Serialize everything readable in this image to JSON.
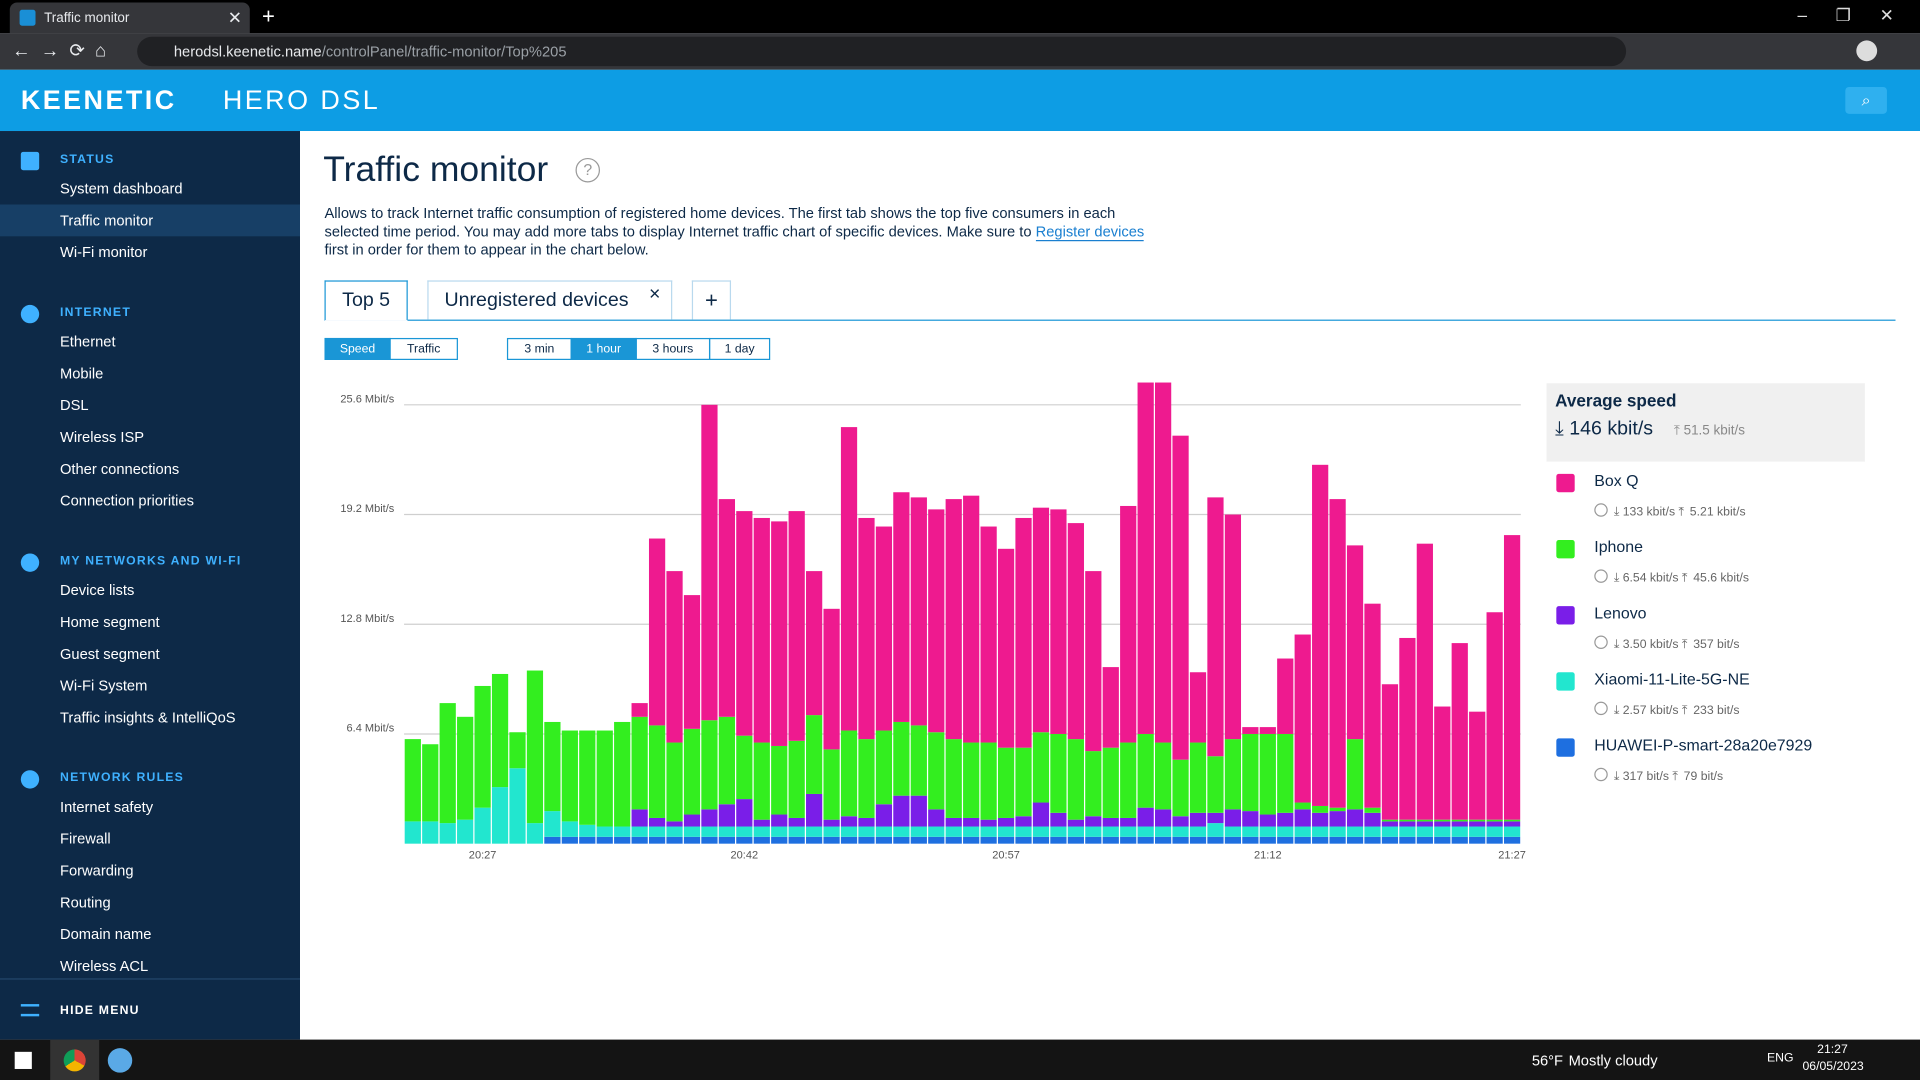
{
  "browser": {
    "tab_title": "Traffic monitor",
    "url_host": "herodsl.keenetic.name",
    "url_path": "/controlPanel/traffic-monitor/Top%205"
  },
  "header": {
    "brand": "KEENETIC",
    "model": "HERO DSL"
  },
  "sidebar": {
    "sections": [
      {
        "title": "STATUS",
        "items": [
          "System dashboard",
          "Traffic monitor",
          "Wi-Fi monitor"
        ]
      },
      {
        "title": "INTERNET",
        "items": [
          "Ethernet",
          "Mobile",
          "DSL",
          "Wireless ISP",
          "Other connections",
          "Connection priorities"
        ]
      },
      {
        "title": "MY NETWORKS AND WI-FI",
        "items": [
          "Device lists",
          "Home segment",
          "Guest segment",
          "Wi-Fi System",
          "Traffic insights & IntelliQoS"
        ]
      },
      {
        "title": "NETWORK RULES",
        "items": [
          "Internet safety",
          "Firewall",
          "Forwarding",
          "Routing",
          "Domain name",
          "Wireless ACL"
        ]
      }
    ],
    "hide_menu": "HIDE MENU"
  },
  "page": {
    "title": "Traffic monitor",
    "help": "?",
    "description_before": "Allows to track Internet traffic consumption of registered home devices. The first tab shows the top five consumers in each selected time period. You may add more tabs to display Internet traffic chart of specific devices. Make sure to ",
    "description_link": "Register devices",
    "description_after": " first in order for them to appear in the chart below.",
    "tabs": [
      "Top 5",
      "Unregistered devices"
    ],
    "tab_close": "×",
    "tab_add": "+",
    "mode_buttons": [
      "Speed",
      "Traffic"
    ],
    "period_buttons": [
      "3 min",
      "1 hour",
      "3 hours",
      "1 day"
    ]
  },
  "chart_data": {
    "type": "bar",
    "stacked": true,
    "categories": [
      null,
      null,
      null,
      null,
      "20:27",
      null,
      null,
      null,
      null,
      null,
      null,
      null,
      null,
      null,
      null,
      null,
      null,
      null,
      null,
      "20:42",
      null,
      null,
      null,
      null,
      null,
      null,
      null,
      null,
      null,
      null,
      null,
      null,
      null,
      null,
      "20:57",
      null,
      null,
      null,
      null,
      null,
      null,
      null,
      null,
      null,
      null,
      null,
      null,
      null,
      null,
      "21:12",
      null,
      null,
      null,
      null,
      null,
      null,
      null,
      null,
      null,
      null,
      null,
      null,
      null,
      "21:27"
    ],
    "ylim": [
      0,
      27
    ],
    "yticks": [
      {
        "value": 6.4,
        "label": "6.4 Mbit/s"
      },
      {
        "value": 12.8,
        "label": "12.8 Mbit/s"
      },
      {
        "value": 19.2,
        "label": "19.2 Mbit/s"
      },
      {
        "value": 25.6,
        "label": "25.6 Mbit/s"
      }
    ],
    "grid": true,
    "legend_title": "Average speed",
    "avg_download": "146 kbit/s",
    "avg_upload": "51.5 kbit/s",
    "series": [
      {
        "name": "Box Q",
        "color": "#ee1a8f",
        "download": "133 kbit/s",
        "upload": "5.21 kbit/s",
        "values": [
          0,
          0,
          0,
          0,
          0,
          0,
          0,
          0,
          0,
          0,
          0,
          0,
          0,
          0.8,
          10.9,
          10.0,
          7.8,
          18.4,
          12.7,
          13.1,
          13.1,
          13.1,
          13.4,
          8.4,
          8.2,
          17.7,
          12.9,
          11.9,
          13.4,
          13.3,
          13.0,
          14.0,
          14.4,
          12.6,
          11.6,
          13.4,
          13.1,
          13.1,
          12.6,
          10.5,
          4.7,
          13.8,
          20.5,
          21.0,
          18.9,
          4.1,
          15.1,
          13.1,
          0.4,
          0.4,
          4.4,
          9.8,
          19.9,
          18.0,
          11.3,
          11.9,
          7.9,
          10.6,
          16.1,
          6.6,
          10.3,
          6.3,
          12.1,
          16.6
        ]
      },
      {
        "name": "Iphone",
        "color": "#33ee1f",
        "download": "6.54 kbit/s",
        "upload": "45.6 kbit/s",
        "values": [
          4.8,
          4.5,
          7.0,
          6.0,
          7.1,
          6.6,
          2.1,
          8.9,
          5.2,
          5.3,
          5.5,
          5.6,
          6.1,
          5.4,
          5.4,
          4.6,
          5.0,
          5.2,
          5.1,
          3.7,
          4.5,
          4.0,
          4.5,
          4.6,
          4.1,
          5.0,
          4.6,
          4.3,
          4.3,
          4.1,
          4.5,
          4.6,
          4.4,
          4.5,
          4.1,
          4.0,
          4.1,
          4.6,
          4.7,
          3.8,
          4.1,
          4.4,
          4.3,
          3.9,
          3.3,
          4.1,
          3.3,
          4.1,
          4.5,
          4.7,
          4.6,
          0.4,
          0.4,
          0.2,
          4.1,
          0.3,
          0.1,
          0.1,
          0.1,
          0.1,
          0.1,
          0.1,
          0.1,
          0.1
        ]
      },
      {
        "name": "Lenovo",
        "color": "#7a1ee8",
        "download": "3.50 kbit/s",
        "upload": "357 bit/s",
        "values": [
          0,
          0,
          0,
          0,
          0,
          0,
          0,
          0,
          0,
          0,
          0,
          0,
          0,
          1.0,
          0.5,
          0.3,
          0.7,
          1.0,
          1.3,
          1.6,
          0.4,
          0.7,
          0.5,
          1.9,
          0.4,
          0.6,
          0.5,
          1.3,
          1.8,
          1.8,
          1.0,
          0.5,
          0.5,
          0.4,
          0.5,
          0.6,
          1.4,
          0.8,
          0.4,
          0.6,
          0.5,
          0.5,
          1.1,
          1.0,
          0.6,
          0.8,
          0.6,
          1.0,
          0.9,
          0.7,
          0.8,
          1.0,
          0.8,
          0.9,
          1.0,
          0.8,
          0.3,
          0.3,
          0.3,
          0.3,
          0.3,
          0.3,
          0.3,
          0.3
        ]
      },
      {
        "name": "Xiaomi-11-Lite-5G-NE",
        "color": "#22e6cf",
        "download": "2.57 kbit/s",
        "upload": "233 bit/s",
        "values": [
          1.3,
          1.3,
          1.2,
          1.4,
          2.1,
          3.3,
          4.4,
          1.2,
          1.5,
          0.9,
          0.7,
          0.6,
          0.6,
          0.6,
          0.6,
          0.6,
          0.6,
          0.6,
          0.6,
          0.6,
          0.6,
          0.6,
          0.6,
          0.6,
          0.6,
          0.6,
          0.6,
          0.6,
          0.6,
          0.6,
          0.6,
          0.6,
          0.6,
          0.6,
          0.6,
          0.6,
          0.6,
          0.6,
          0.6,
          0.6,
          0.6,
          0.6,
          0.6,
          0.6,
          0.6,
          0.6,
          0.8,
          0.6,
          0.6,
          0.6,
          0.6,
          0.6,
          0.6,
          0.6,
          0.6,
          0.6,
          0.6,
          0.6,
          0.6,
          0.6,
          0.6,
          0.6,
          0.6,
          0.6
        ]
      },
      {
        "name": "HUAWEI-P-smart-28a20e7929",
        "color": "#1e6fe0",
        "download": "317 bit/s",
        "upload": "79 bit/s",
        "values": [
          0,
          0,
          0,
          0,
          0,
          0,
          0,
          0,
          0.4,
          0.4,
          0.4,
          0.4,
          0.4,
          0.4,
          0.4,
          0.4,
          0.4,
          0.4,
          0.4,
          0.4,
          0.4,
          0.4,
          0.4,
          0.4,
          0.4,
          0.4,
          0.4,
          0.4,
          0.4,
          0.4,
          0.4,
          0.4,
          0.4,
          0.4,
          0.4,
          0.4,
          0.4,
          0.4,
          0.4,
          0.4,
          0.4,
          0.4,
          0.4,
          0.4,
          0.4,
          0.4,
          0.4,
          0.4,
          0.4,
          0.4,
          0.4,
          0.4,
          0.4,
          0.4,
          0.4,
          0.4,
          0.4,
          0.4,
          0.4,
          0.4,
          0.4,
          0.4,
          0.4,
          0.4
        ]
      }
    ]
  },
  "taskbar": {
    "temperature": "56°F",
    "weather": "Mostly cloudy",
    "language": "ENG",
    "time": "21:27",
    "date": "06/05/2023"
  }
}
